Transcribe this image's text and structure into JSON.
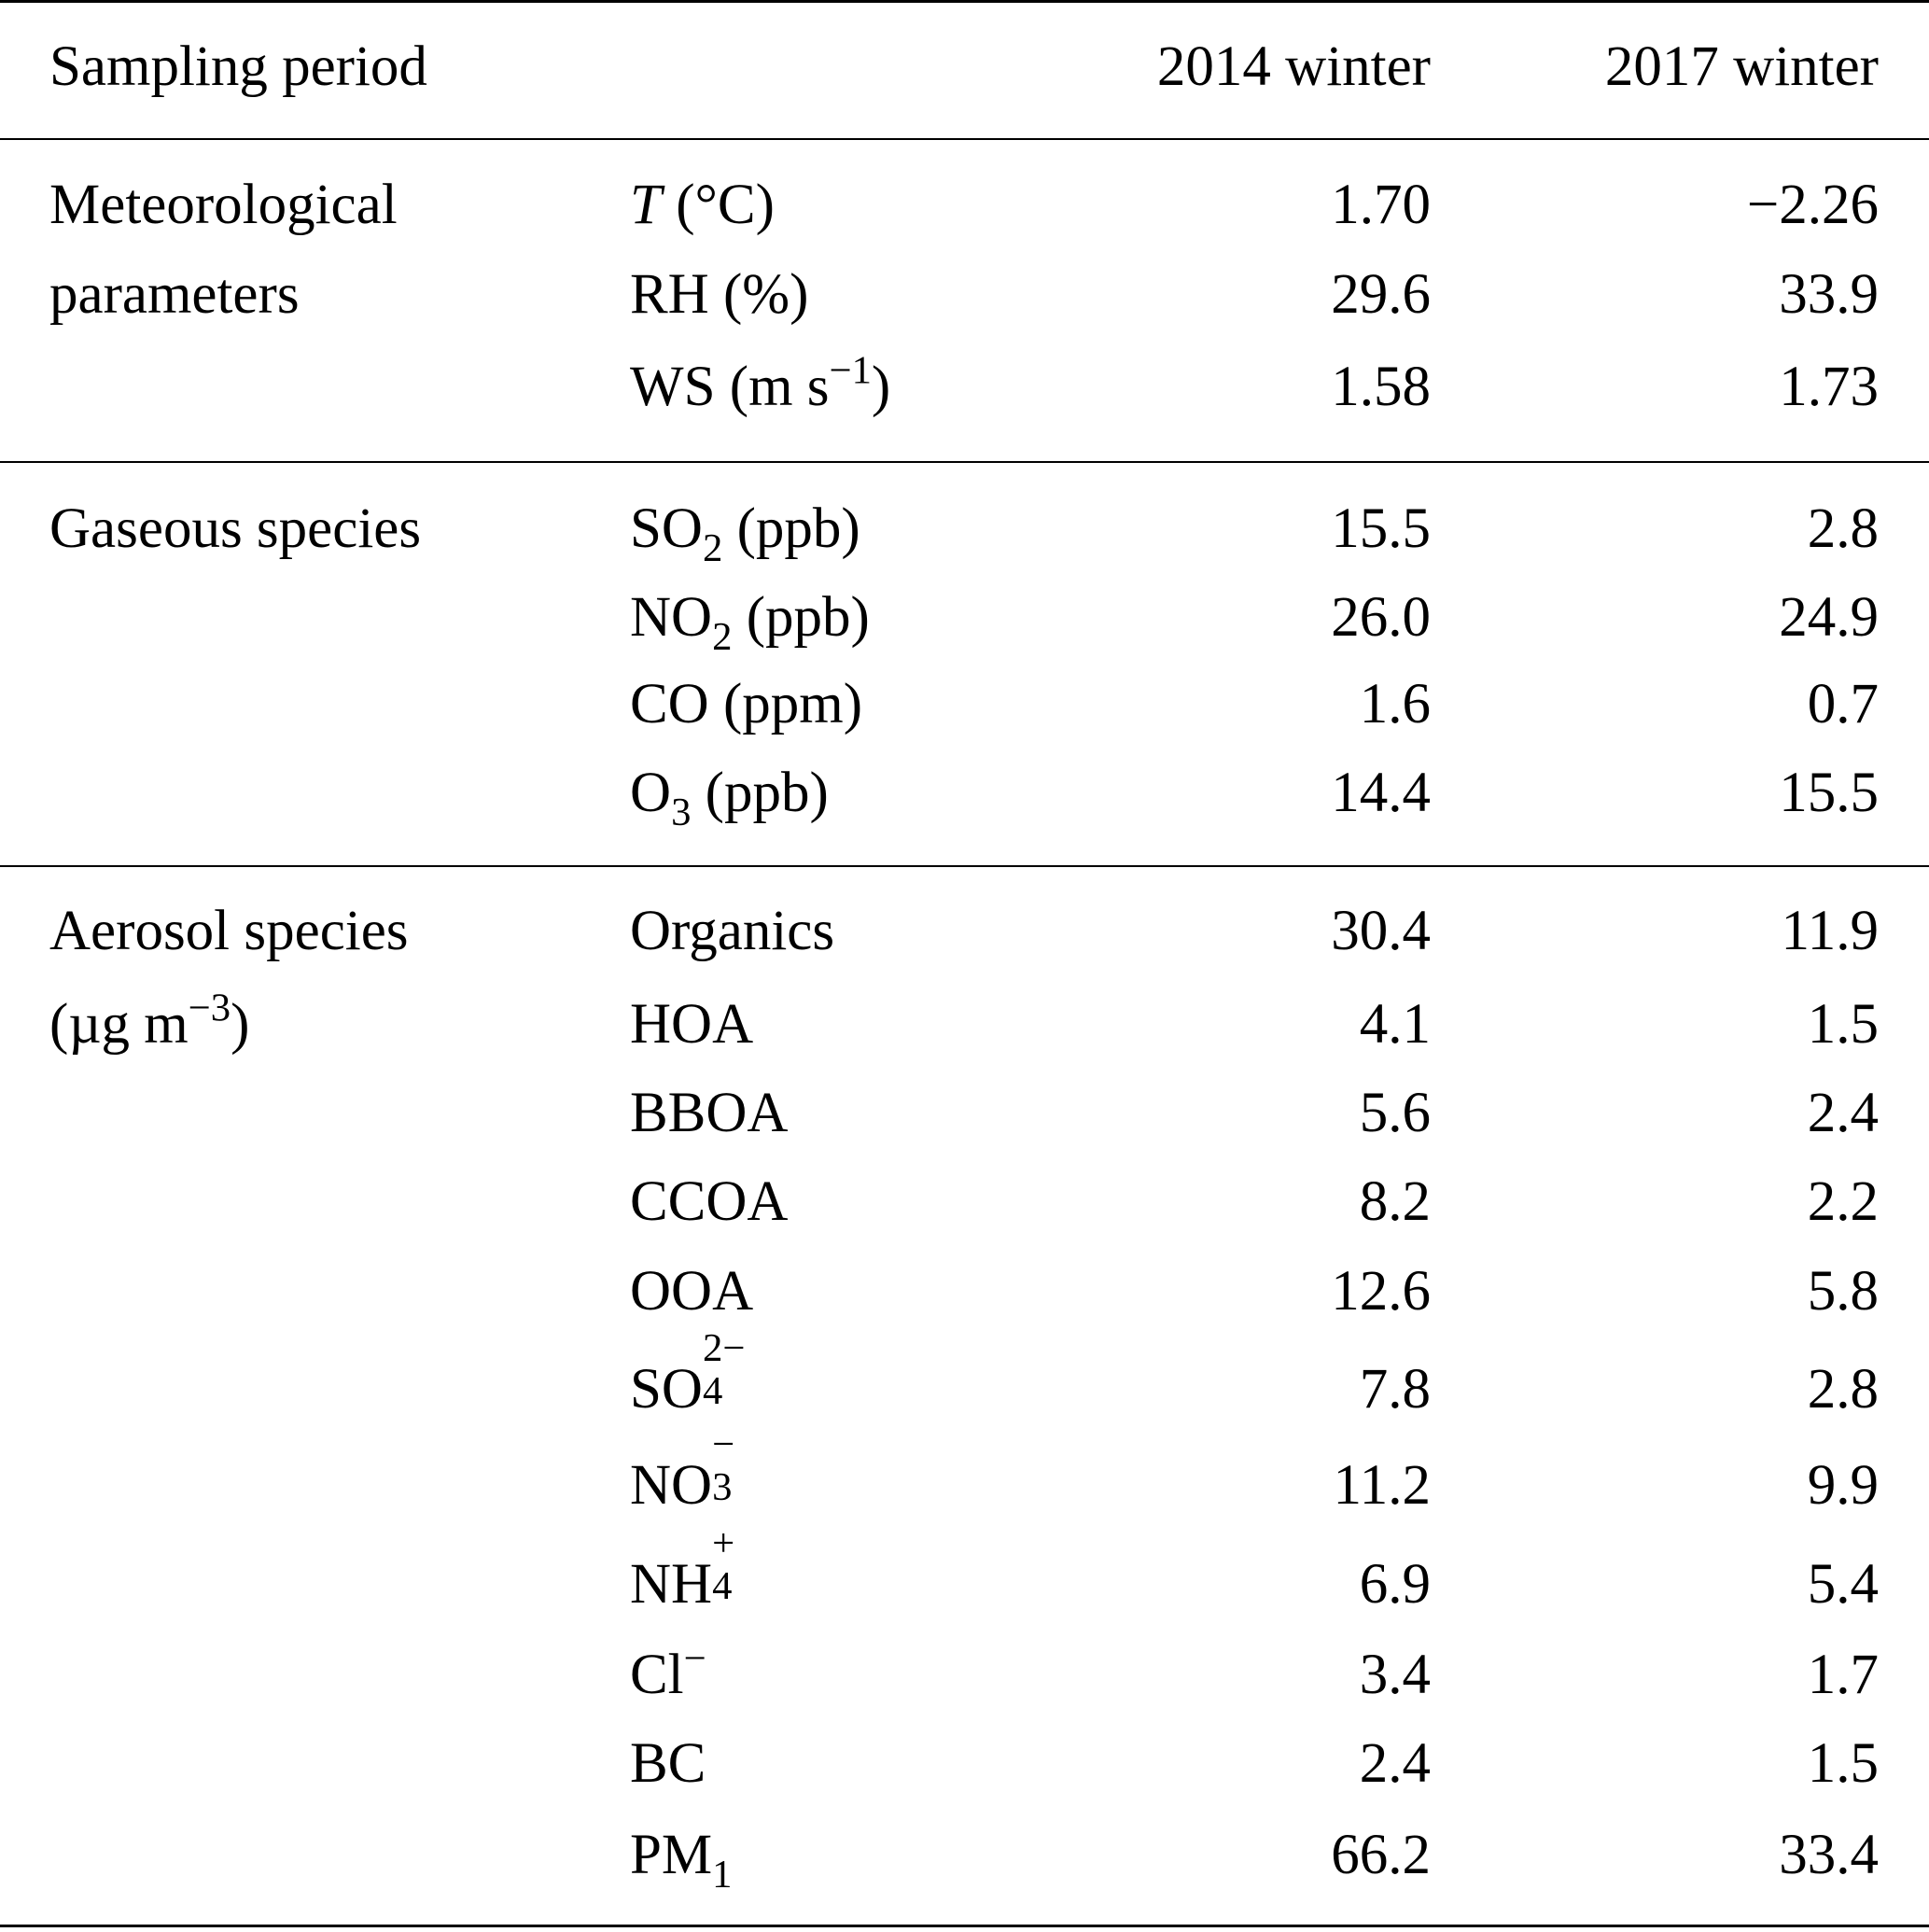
{
  "header": {
    "sampling_period": "Sampling period",
    "col_2014": "2014 winter",
    "col_2017": "2017 winter"
  },
  "groups": [
    {
      "name": [
        "Meteorological",
        "parameters"
      ],
      "rows": [
        {
          "label": [
            {
              "t": "T",
              "s": "i"
            },
            {
              "t": " (°C)"
            }
          ],
          "v2014": "1.70",
          "v2017": "−2.26"
        },
        {
          "label": [
            {
              "t": "RH (%)"
            }
          ],
          "v2014": "29.6",
          "v2017": "33.9"
        },
        {
          "label": [
            {
              "t": "WS (m s"
            },
            {
              "t": "−1",
              "s": "sup"
            },
            {
              "t": ")"
            }
          ],
          "v2014": "1.58",
          "v2017": "1.73"
        }
      ]
    },
    {
      "name": [
        "Gaseous species"
      ],
      "rows": [
        {
          "label": [
            {
              "t": "SO"
            },
            {
              "t": "2",
              "s": "sub"
            },
            {
              "t": " (ppb)"
            }
          ],
          "v2014": "15.5",
          "v2017": "2.8"
        },
        {
          "label": [
            {
              "t": "NO"
            },
            {
              "t": "2",
              "s": "sub"
            },
            {
              "t": " (ppb)"
            }
          ],
          "v2014": "26.0",
          "v2017": "24.9"
        },
        {
          "label": [
            {
              "t": "CO (ppm)"
            }
          ],
          "v2014": "1.6",
          "v2017": "0.7"
        },
        {
          "label": [
            {
              "t": "O"
            },
            {
              "t": "3",
              "s": "sub"
            },
            {
              "t": " (ppb)"
            }
          ],
          "v2014": "14.4",
          "v2017": "15.5"
        }
      ]
    },
    {
      "name": [
        "Aerosol species",
        "(µg m|−3|)"
      ],
      "rows": [
        {
          "label": [
            {
              "t": "Organics"
            }
          ],
          "v2014": "30.4",
          "v2017": "11.9"
        },
        {
          "label": [
            {
              "t": "HOA"
            }
          ],
          "v2014": "4.1",
          "v2017": "1.5"
        },
        {
          "label": [
            {
              "t": "BBOA"
            }
          ],
          "v2014": "5.6",
          "v2017": "2.4"
        },
        {
          "label": [
            {
              "t": "CCOA"
            }
          ],
          "v2014": "8.2",
          "v2017": "2.2"
        },
        {
          "label": [
            {
              "t": "OOA"
            }
          ],
          "v2014": "12.6",
          "v2017": "5.8"
        },
        {
          "label": [
            {
              "t": "SO"
            },
            {
              "t": "2−|4",
              "s": "stack"
            }
          ],
          "v2014": "7.8",
          "v2017": "2.8"
        },
        {
          "label": [
            {
              "t": "NO"
            },
            {
              "t": "−|3",
              "s": "stack"
            }
          ],
          "v2014": "11.2",
          "v2017": "9.9"
        },
        {
          "label": [
            {
              "t": "NH"
            },
            {
              "t": "+|4",
              "s": "stack"
            }
          ],
          "v2014": "6.9",
          "v2017": "5.4"
        },
        {
          "label": [
            {
              "t": "Cl"
            },
            {
              "t": "−",
              "s": "sup"
            }
          ],
          "v2014": "3.4",
          "v2017": "1.7"
        },
        {
          "label": [
            {
              "t": "BC"
            }
          ],
          "v2014": "2.4",
          "v2017": "1.5"
        },
        {
          "label": [
            {
              "t": "PM"
            },
            {
              "t": "1",
              "s": "sub"
            }
          ],
          "v2014": "66.2",
          "v2017": "33.4"
        }
      ]
    }
  ]
}
